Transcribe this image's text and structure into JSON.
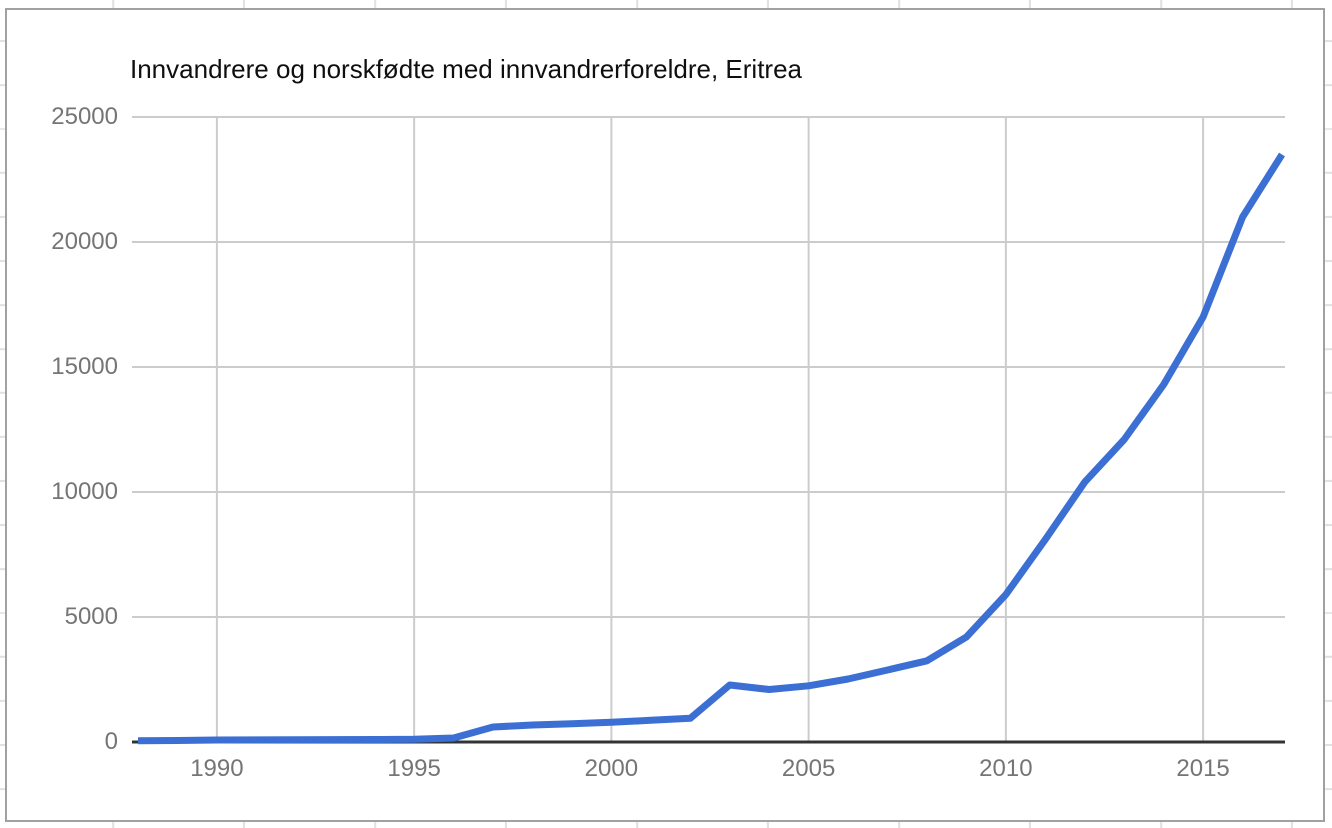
{
  "chart_data": {
    "type": "line",
    "title": "Innvandrere og norskfødte med innvandrerforeldre, Eritrea",
    "xlabel": "",
    "ylabel": "",
    "x": [
      1988,
      1989,
      1990,
      1991,
      1992,
      1993,
      1994,
      1995,
      1996,
      1997,
      1998,
      1999,
      2000,
      2001,
      2002,
      2003,
      2004,
      2005,
      2006,
      2007,
      2008,
      2009,
      2010,
      2011,
      2012,
      2013,
      2014,
      2015,
      2016,
      2017
    ],
    "series": [
      {
        "name": "Eritrea",
        "values": [
          50,
          60,
          80,
          85,
          90,
          95,
          100,
          110,
          160,
          600,
          680,
          730,
          790,
          870,
          950,
          2280,
          2100,
          2250,
          2520,
          2880,
          3250,
          4200,
          5900,
          8100,
          10400,
          12100,
          14300,
          17000,
          21000,
          23500
        ]
      }
    ],
    "xticks": [
      1990,
      1995,
      2000,
      2005,
      2010,
      2015
    ],
    "yticks": [
      0,
      5000,
      10000,
      15000,
      20000,
      25000
    ],
    "xlim": [
      1988,
      2017
    ],
    "ylim": [
      0,
      25000
    ],
    "grid": true,
    "legend": "none",
    "colors": {
      "line": "#3b6fd4",
      "gridline": "#cccccc",
      "baseline": "#333333",
      "tick_label": "#757575",
      "title": "#0f0f0f",
      "panel_border": "#a1a1a1",
      "sheet_gridline": "#e1e1e1"
    }
  }
}
